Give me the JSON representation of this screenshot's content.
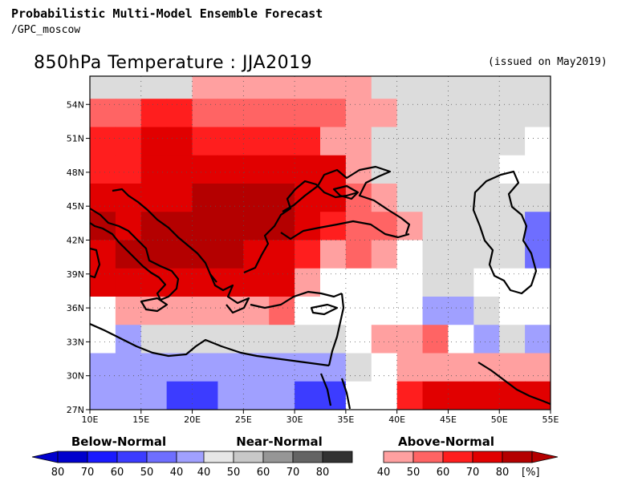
{
  "header": {
    "title": "Probabilistic Multi-Model Ensemble Forecast",
    "subtitle": "/GPC_moscow"
  },
  "map": {
    "title": "850hPa Temperature : JJA2019",
    "issued": "(issued on May2019)",
    "lat_labels": [
      "54N",
      "51N",
      "48N",
      "45N",
      "42N",
      "39N",
      "36N",
      "33N",
      "30N",
      "27N"
    ],
    "lon_labels": [
      "10E",
      "15E",
      "20E",
      "25E",
      "30E",
      "35E",
      "40E",
      "45E",
      "50E",
      "55E"
    ],
    "lon_range": [
      10,
      55
    ],
    "lat_range": [
      27,
      56.5
    ],
    "grid": "dotted",
    "grid_rows_lat": [
      54.5,
      52,
      49.5,
      47,
      44.5,
      42,
      39.5,
      37,
      34.5,
      32,
      29.5,
      27
    ],
    "grid_cols_lon": [
      10,
      12.5,
      15,
      17.5,
      20,
      22.5,
      25,
      27.5,
      30,
      32.5,
      35,
      37.5,
      40,
      42.5,
      45,
      47.5,
      50,
      52.5,
      55
    ]
  },
  "colors": {
    "below": [
      "#0000cd",
      "#1a1aff",
      "#3c3cff",
      "#6e6eff",
      "#a0a0ff"
    ],
    "near": [
      "#e6e6e6",
      "#c8c8c8",
      "#969696",
      "#646464",
      "#323232"
    ],
    "above": [
      "#ffa0a0",
      "#ff6464",
      "#ff1e1e",
      "#e10000",
      "#b40000"
    ],
    "white": "#ffffff",
    "land_near": "#dcdcdc"
  },
  "cells": [
    "NNNNAAAAAAANNNNNNNN",
    "BBCCBBBBBBAANNNNNNN",
    "CCDDCCCCCAANNNNNNWW",
    "CCDDDDDDDDANNNNNWWb",
    "DDDDEEEEDDBANNNNNNb",
    "EDEEEEEEDCBBANNNNcd",
    "DEEEEEDDCABAWNNNNcd",
    "DDDDDDDDAWWWWNNWWWb",
    "WAAAAAABWWWWWbbNWWb",
    "WbNNNNNNNNWAABWbNbe",
    "bbbbbbbbbbNWAAAAAAA",
    "bbbddbbbddWWCDDDDDD"
  ],
  "cell_legend": {
    "N": "near",
    "W": "white",
    "A": "above-40",
    "B": "above-50",
    "C": "above-60",
    "D": "above-70",
    "E": "above-80",
    "b": "below-40",
    "c": "below-50",
    "d": "below-60",
    "e": "below-70"
  },
  "colorbars": {
    "below": {
      "title": "Below-Normal",
      "labels": [
        "80",
        "70",
        "60",
        "50",
        "40"
      ]
    },
    "near": {
      "title": "Near-Normal",
      "labels": [
        "40",
        "50",
        "60",
        "70",
        "80"
      ]
    },
    "above": {
      "title": "Above-Normal",
      "labels": [
        "40",
        "50",
        "60",
        "70",
        "80"
      ],
      "unit": "[%]"
    }
  }
}
